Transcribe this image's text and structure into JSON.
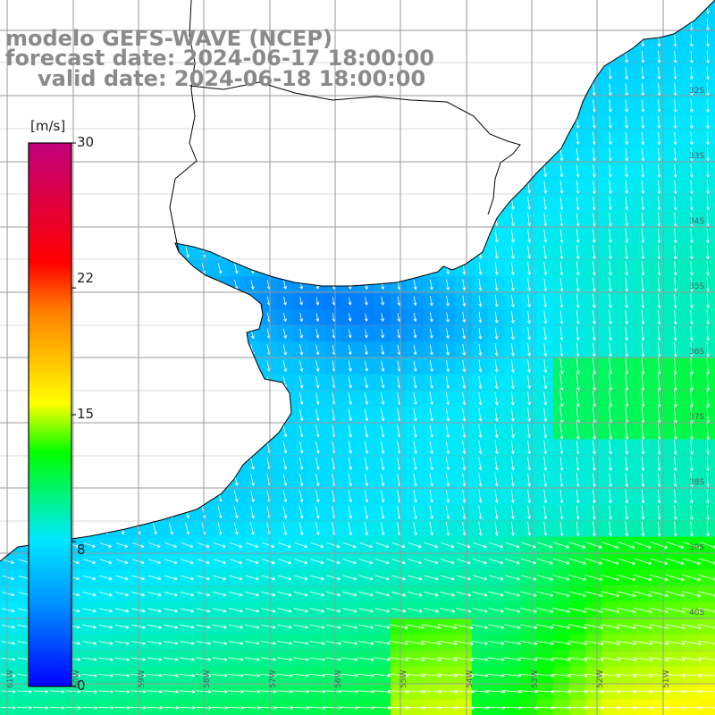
{
  "title": {
    "line1": "modelo GEFS-WAVE (NCEP)",
    "line2": "forecast date: 2024-06-17 18:00:00",
    "line3": "valid date: 2024-06-18 18:00:00"
  },
  "colorbar": {
    "unit": "[m/s]",
    "ticks": [
      {
        "value": 30,
        "label": "30"
      },
      {
        "value": 22,
        "label": "22"
      },
      {
        "value": 15,
        "label": "15"
      },
      {
        "value": 8,
        "label": "8"
      },
      {
        "value": 0,
        "label": "0"
      }
    ],
    "min": 0,
    "max": 30,
    "colors": [
      "#0000ff",
      "#0090ff",
      "#00e8ff",
      "#00ff00",
      "#ffff00",
      "#ff8000",
      "#ff0000",
      "#c0007a"
    ]
  },
  "map": {
    "lon_labels": [
      "61W",
      "60W",
      "59W",
      "58W",
      "57W",
      "56W",
      "55W",
      "54W",
      "53W",
      "52W",
      "51W"
    ],
    "lat_labels": [
      "32S",
      "33S",
      "34S",
      "35S",
      "36S",
      "37S",
      "38S",
      "39S",
      "40S"
    ],
    "land_color": "#ffffff",
    "grid_color": "#9a9a9a",
    "coast_color": "#000000",
    "arrow_color": "#ffffff"
  }
}
